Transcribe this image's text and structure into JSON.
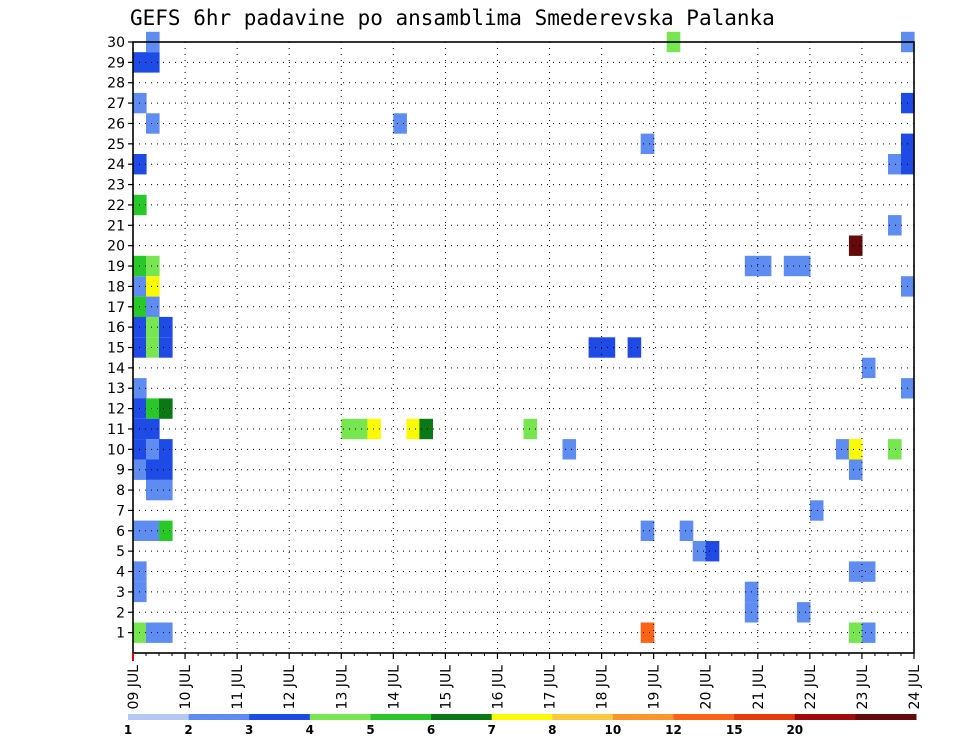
{
  "chart_data": {
    "type": "heatmap",
    "title": "GEFS 6hr padavine po ansamblima Smederevska Palanka",
    "x_ticks": [
      "09 JUL",
      "10 JUL",
      "11 JUL",
      "12 JUL",
      "13 JUL",
      "14 JUL",
      "15 JUL",
      "16 JUL",
      "17 JUL",
      "18 JUL",
      "19 JUL",
      "20 JUL",
      "21 JUL",
      "22 JUL",
      "23 JUL",
      "24 JUL"
    ],
    "y_ticks": [
      1,
      2,
      3,
      4,
      5,
      6,
      7,
      8,
      9,
      10,
      11,
      12,
      13,
      14,
      15,
      16,
      17,
      18,
      19,
      20,
      21,
      22,
      23,
      24,
      25,
      26,
      27,
      28,
      29,
      30
    ],
    "xlim": [
      "09 JUL",
      "24 JUL"
    ],
    "ylim": [
      0,
      30
    ],
    "step_hours": 6,
    "grid": true,
    "colorbar": {
      "labels": [
        "1",
        "2",
        "3",
        "4",
        "5",
        "6",
        "7",
        "8",
        "10",
        "12",
        "15",
        "20"
      ],
      "colors": [
        "#b4c8f5",
        "#5f8cf0",
        "#1e4be6",
        "#78e650",
        "#28c828",
        "#0a7814",
        "#fafa00",
        "#fac83c",
        "#fa9628",
        "#fa6414",
        "#e13c0a",
        "#a00a0a",
        "#640a0a"
      ]
    },
    "cells": [
      {
        "x": "09 JUL 06Z",
        "y": 30,
        "c": 1
      },
      {
        "x": "09 JUL 00Z",
        "y": 29,
        "c": 2
      },
      {
        "x": "09 JUL 06Z",
        "y": 29,
        "c": 2
      },
      {
        "x": "09 JUL 00Z",
        "y": 27,
        "c": 1
      },
      {
        "x": "09 JUL 06Z",
        "y": 26,
        "c": 1
      },
      {
        "x": "09 JUL 00Z",
        "y": 24,
        "c": 2
      },
      {
        "x": "09 JUL 00Z",
        "y": 22,
        "c": 4
      },
      {
        "x": "09 JUL 00Z",
        "y": 19,
        "c": 4
      },
      {
        "x": "09 JUL 06Z",
        "y": 19,
        "c": 3
      },
      {
        "x": "09 JUL 00Z",
        "y": 18,
        "c": 1
      },
      {
        "x": "09 JUL 06Z",
        "y": 18,
        "c": 6
      },
      {
        "x": "09 JUL 00Z",
        "y": 17,
        "c": 4
      },
      {
        "x": "09 JUL 06Z",
        "y": 17,
        "c": 1
      },
      {
        "x": "09 JUL 00Z",
        "y": 16,
        "c": 2
      },
      {
        "x": "09 JUL 06Z",
        "y": 16,
        "c": 3
      },
      {
        "x": "09 JUL 12Z",
        "y": 16,
        "c": 2
      },
      {
        "x": "09 JUL 00Z",
        "y": 15,
        "c": 2
      },
      {
        "x": "09 JUL 06Z",
        "y": 15,
        "c": 3
      },
      {
        "x": "09 JUL 12Z",
        "y": 15,
        "c": 2
      },
      {
        "x": "09 JUL 00Z",
        "y": 13,
        "c": 1
      },
      {
        "x": "09 JUL 00Z",
        "y": 12,
        "c": 2
      },
      {
        "x": "09 JUL 06Z",
        "y": 12,
        "c": 4
      },
      {
        "x": "09 JUL 12Z",
        "y": 12,
        "c": 5
      },
      {
        "x": "09 JUL 00Z",
        "y": 11,
        "c": 2
      },
      {
        "x": "09 JUL 06Z",
        "y": 11,
        "c": 2
      },
      {
        "x": "09 JUL 00Z",
        "y": 10,
        "c": 2
      },
      {
        "x": "09 JUL 06Z",
        "y": 10,
        "c": 1
      },
      {
        "x": "09 JUL 12Z",
        "y": 10,
        "c": 2
      },
      {
        "x": "09 JUL 00Z",
        "y": 9,
        "c": 1
      },
      {
        "x": "09 JUL 06Z",
        "y": 9,
        "c": 2
      },
      {
        "x": "09 JUL 12Z",
        "y": 9,
        "c": 2
      },
      {
        "x": "09 JUL 06Z",
        "y": 8,
        "c": 1
      },
      {
        "x": "09 JUL 12Z",
        "y": 8,
        "c": 1
      },
      {
        "x": "09 JUL 00Z",
        "y": 6,
        "c": 1
      },
      {
        "x": "09 JUL 06Z",
        "y": 6,
        "c": 1
      },
      {
        "x": "09 JUL 12Z",
        "y": 6,
        "c": 4
      },
      {
        "x": "09 JUL 00Z",
        "y": 4,
        "c": 1
      },
      {
        "x": "09 JUL 00Z",
        "y": 3,
        "c": 1
      },
      {
        "x": "09 JUL 00Z",
        "y": 1,
        "c": 3
      },
      {
        "x": "09 JUL 06Z",
        "y": 1,
        "c": 1
      },
      {
        "x": "09 JUL 12Z",
        "y": 1,
        "c": 1
      },
      {
        "x": "13 JUL 00Z",
        "y": 11,
        "c": 3
      },
      {
        "x": "13 JUL 06Z",
        "y": 11,
        "c": 3
      },
      {
        "x": "13 JUL 12Z",
        "y": 11,
        "c": 6
      },
      {
        "x": "14 JUL 06Z",
        "y": 11,
        "c": 6
      },
      {
        "x": "14 JUL 12Z",
        "y": 11,
        "c": 5
      },
      {
        "x": "16 JUL 12Z",
        "y": 11,
        "c": 3
      },
      {
        "x": "17 JUL 06Z",
        "y": 10,
        "c": 1
      },
      {
        "x": "17 JUL 18Z",
        "y": 15,
        "c": 2
      },
      {
        "x": "18 JUL 00Z",
        "y": 15,
        "c": 2
      },
      {
        "x": "18 JUL 12Z",
        "y": 15,
        "c": 2
      },
      {
        "x": "18 JUL 18Z",
        "y": 25,
        "c": 1
      },
      {
        "x": "18 JUL 18Z",
        "y": 6,
        "c": 1
      },
      {
        "x": "18 JUL 18Z",
        "y": 1,
        "c": 9
      },
      {
        "x": "19 JUL 06Z",
        "y": 30,
        "c": 3
      },
      {
        "x": "19 JUL 12Z",
        "y": 6,
        "c": 1
      },
      {
        "x": "19 JUL 18Z",
        "y": 5,
        "c": 1
      },
      {
        "x": "20 JUL 00Z",
        "y": 5,
        "c": 2
      },
      {
        "x": "14 JUL 00Z",
        "y": 26,
        "c": 1
      },
      {
        "x": "20 JUL 18Z",
        "y": 19,
        "c": 1
      },
      {
        "x": "21 JUL 00Z",
        "y": 19,
        "c": 1
      },
      {
        "x": "21 JUL 12Z",
        "y": 19,
        "c": 1
      },
      {
        "x": "21 JUL 18Z",
        "y": 19,
        "c": 1
      },
      {
        "x": "20 JUL 18Z",
        "y": 3,
        "c": 1
      },
      {
        "x": "20 JUL 18Z",
        "y": 2,
        "c": 1
      },
      {
        "x": "21 JUL 18Z",
        "y": 2,
        "c": 1
      },
      {
        "x": "22 JUL 00Z",
        "y": 7,
        "c": 1
      },
      {
        "x": "22 JUL 12Z",
        "y": 10,
        "c": 1
      },
      {
        "x": "22 JUL 18Z",
        "y": 10,
        "c": 6
      },
      {
        "x": "22 JUL 18Z",
        "y": 20,
        "c": 12
      },
      {
        "x": "22 JUL 18Z",
        "y": 9,
        "c": 1
      },
      {
        "x": "22 JUL 18Z",
        "y": 4,
        "c": 1
      },
      {
        "x": "23 JUL 00Z",
        "y": 4,
        "c": 1
      },
      {
        "x": "22 JUL 18Z",
        "y": 1,
        "c": 3
      },
      {
        "x": "23 JUL 00Z",
        "y": 1,
        "c": 1
      },
      {
        "x": "23 JUL 00Z",
        "y": 14,
        "c": 1
      },
      {
        "x": "23 JUL 12Z",
        "y": 10,
        "c": 3
      },
      {
        "x": "23 JUL 12Z",
        "y": 21,
        "c": 1
      },
      {
        "x": "23 JUL 12Z",
        "y": 24,
        "c": 1
      },
      {
        "x": "23 JUL 18Z",
        "y": 24,
        "c": 2
      },
      {
        "x": "23 JUL 18Z",
        "y": 25,
        "c": 2
      },
      {
        "x": "23 JUL 18Z",
        "y": 27,
        "c": 2
      },
      {
        "x": "23 JUL 18Z",
        "y": 30,
        "c": 1
      },
      {
        "x": "23 JUL 18Z",
        "y": 18,
        "c": 1
      },
      {
        "x": "23 JUL 18Z",
        "y": 13,
        "c": 1
      }
    ]
  }
}
